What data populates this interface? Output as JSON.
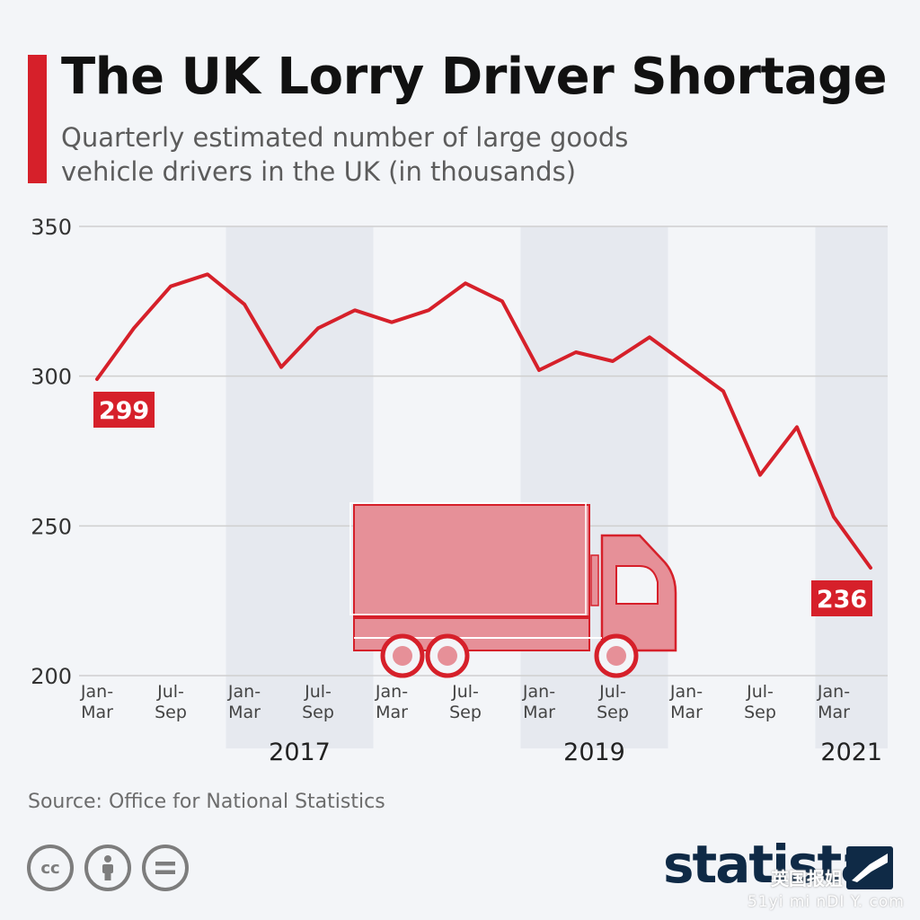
{
  "header": {
    "title": "The UK Lorry Driver Shortage",
    "subtitle": "Quarterly estimated number of large goods vehicle drivers in the UK (in thousands)"
  },
  "footer": {
    "source": "Source: Office for National Statistics",
    "license_icons": [
      "cc",
      "person-icon",
      "equals-icon"
    ],
    "cc_label": "cc",
    "brand": "statista",
    "watermark": "英国报姐",
    "watermark_url": "51yi mi nDI Y. com"
  },
  "colors": {
    "line": "#d6202a",
    "accent": "#d6202a",
    "grid": "#cfcfcf",
    "band": "#e6e9ef",
    "background": "#f3f5f8",
    "brand": "#0f2a46"
  },
  "chart_data": {
    "type": "line",
    "title": "The UK Lorry Driver Shortage",
    "subtitle": "Quarterly estimated number of large goods vehicle drivers in the UK (in thousands)",
    "ylim": [
      200,
      350
    ],
    "yticks": [
      200,
      250,
      300,
      350
    ],
    "grid": true,
    "x_labels": [
      {
        "quarter": 0,
        "label": "Jan-\nMar"
      },
      {
        "quarter": 2,
        "label": "Jul-\nSep"
      },
      {
        "quarter": 4,
        "label": "Jan-\nMar"
      },
      {
        "quarter": 6,
        "label": "Jul-\nSep"
      },
      {
        "quarter": 8,
        "label": "Jan-\nMar"
      },
      {
        "quarter": 10,
        "label": "Jul-\nSep"
      },
      {
        "quarter": 12,
        "label": "Jan-\nMar"
      },
      {
        "quarter": 14,
        "label": "Jul-\nSep"
      },
      {
        "quarter": 16,
        "label": "Jan-\nMar"
      },
      {
        "quarter": 18,
        "label": "Jul-\nSep"
      },
      {
        "quarter": 20,
        "label": "Jan-\nMar"
      }
    ],
    "year_bands": [
      {
        "label": "2017",
        "start_quarter": 4,
        "end_quarter": 7
      },
      {
        "label": "2019",
        "start_quarter": 12,
        "end_quarter": 15
      },
      {
        "label": "2021",
        "start_quarter": 20,
        "end_quarter": 21
      }
    ],
    "series": [
      {
        "values": [
          299,
          316,
          330,
          334,
          324,
          303,
          316,
          322,
          318,
          322,
          331,
          325,
          302,
          308,
          305,
          313,
          304,
          295,
          267,
          283,
          253,
          236
        ]
      }
    ],
    "annotations": [
      {
        "quarter": 0,
        "text": "299"
      },
      {
        "quarter": 21,
        "text": "236"
      }
    ]
  }
}
